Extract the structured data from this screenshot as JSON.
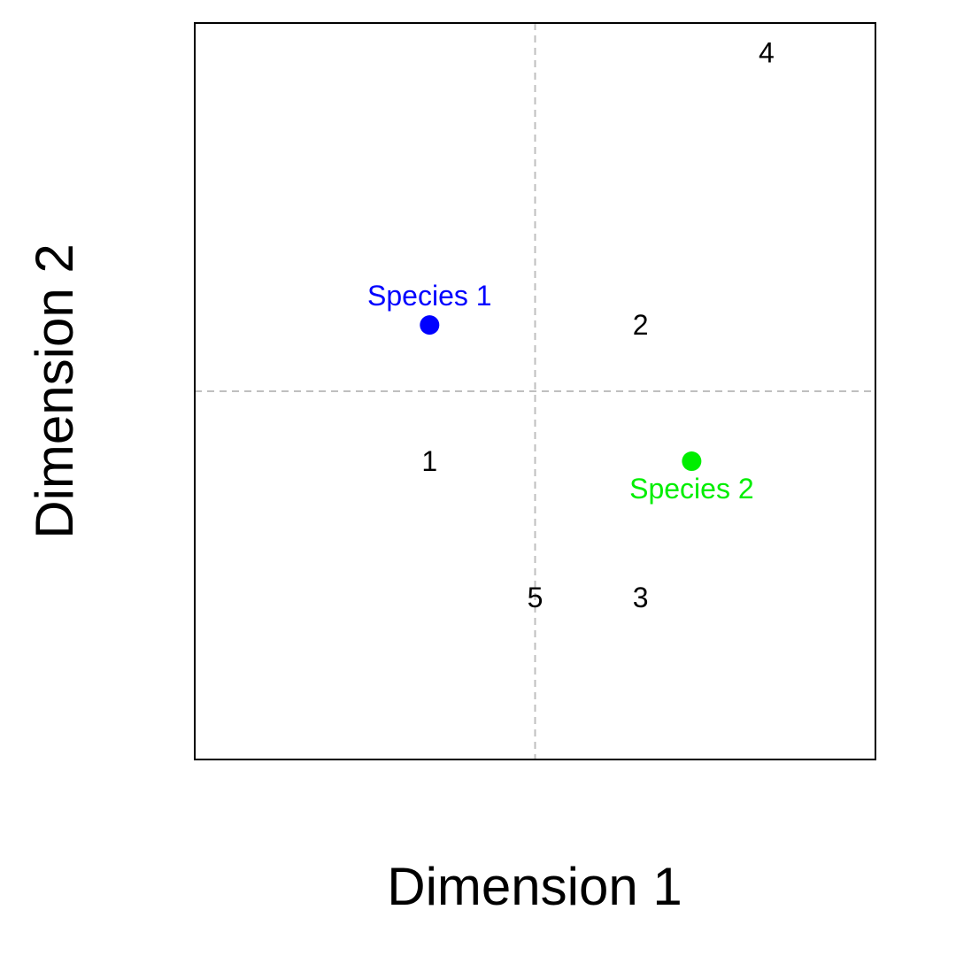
{
  "chart_data": {
    "type": "scatter",
    "title": "",
    "xlabel": "Dimension 1",
    "ylabel": "Dimension 2",
    "xlim": [
      -1.0,
      1.0
    ],
    "ylim": [
      -1.0,
      1.0
    ],
    "grid": false,
    "reference_lines": {
      "x": 0,
      "y": 0
    },
    "sites": [
      {
        "label": "1",
        "x": -0.31,
        "y": -0.19
      },
      {
        "label": "2",
        "x": 0.31,
        "y": 0.18
      },
      {
        "label": "3",
        "x": 0.31,
        "y": -0.56
      },
      {
        "label": "4",
        "x": 0.68,
        "y": 0.92
      },
      {
        "label": "5",
        "x": 0.0,
        "y": -0.56
      }
    ],
    "species": [
      {
        "label": "Species 1",
        "x": -0.31,
        "y": 0.18,
        "color": "#0000ff",
        "label_position": "above"
      },
      {
        "label": "Species 2",
        "x": 0.46,
        "y": -0.19,
        "color": "#00ee00",
        "label_position": "below"
      }
    ]
  }
}
